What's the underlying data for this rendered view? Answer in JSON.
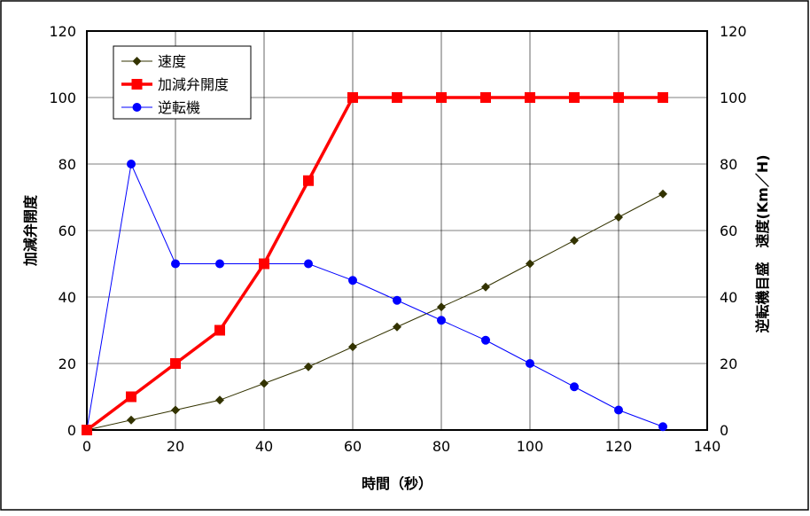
{
  "chart_data": {
    "type": "line",
    "xlabel": "時間（秒）",
    "ylabel_left": "加減弁開度",
    "ylabel_right": "逆転機目盛　速度(Km／H)",
    "x_axis": {
      "min": 0,
      "max": 140,
      "ticks": [
        0,
        20,
        40,
        60,
        80,
        100,
        120,
        140
      ]
    },
    "y_axis": {
      "min": 0,
      "max": 120,
      "ticks": [
        0,
        20,
        40,
        60,
        80,
        100,
        120
      ]
    },
    "grid": true,
    "legend_position": "top-left",
    "series": [
      {
        "name": "速度",
        "color": "#333300",
        "marker": "diamond",
        "x": [
          0,
          10,
          20,
          30,
          40,
          50,
          60,
          70,
          80,
          90,
          100,
          110,
          120,
          130
        ],
        "y": [
          0,
          3,
          6,
          9,
          14,
          19,
          25,
          31,
          37,
          43,
          50,
          57,
          64,
          71
        ]
      },
      {
        "name": "加減弁開度",
        "color": "#ff0000",
        "marker": "square",
        "x": [
          0,
          10,
          20,
          30,
          40,
          50,
          60,
          70,
          80,
          90,
          100,
          110,
          120,
          130
        ],
        "y": [
          0,
          10,
          20,
          30,
          50,
          75,
          100,
          100,
          100,
          100,
          100,
          100,
          100,
          100
        ]
      },
      {
        "name": "逆転機",
        "color": "#0000ff",
        "marker": "circle",
        "x": [
          0,
          10,
          20,
          30,
          40,
          50,
          60,
          70,
          80,
          90,
          100,
          110,
          120,
          130
        ],
        "y": [
          0,
          80,
          50,
          50,
          50,
          50,
          45,
          39,
          33,
          27,
          20,
          13,
          6,
          1
        ]
      }
    ]
  }
}
